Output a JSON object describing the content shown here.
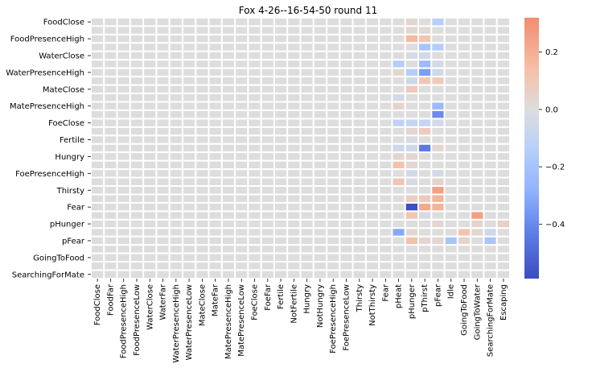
{
  "chart_data": {
    "type": "heatmap",
    "title": "Fox 4-26--16-54-50 round 11",
    "xlabel": "",
    "ylabel": "",
    "x_labels": [
      "FoodClose",
      "FoodFar",
      "FoodPresenceHigh",
      "FoodPresenceLow",
      "WaterClose",
      "WaterFar",
      "WaterPresenceHigh",
      "WaterPresenceLow",
      "MateClose",
      "MateFar",
      "MatePresenceHigh",
      "MatePresenceLow",
      "FoeClose",
      "FoeFar",
      "Fertile",
      "NotFertile",
      "Hungry",
      "NotHungry",
      "FoePresenceHigh",
      "FoePresenceLow",
      "Thirsty",
      "NotThirsty",
      "Fear",
      "pHeat",
      "pHunger",
      "pThirst",
      "pFear",
      "Idle",
      "GoingToFood",
      "GoingToWater",
      "SearchingForMate",
      "Escaping"
    ],
    "y_labels": [
      "FoodClose",
      "FoodPresenceHigh",
      "WaterClose",
      "WaterPresenceHigh",
      "MateClose",
      "MatePresenceHigh",
      "FoeClose",
      "Fertile",
      "Hungry",
      "FoePresenceHigh",
      "Thirsty",
      "Fear",
      "pHunger",
      "pFear",
      "GoingToFood",
      "SearchingForMate"
    ],
    "row_count": 31,
    "col_count": 32,
    "default_value": 0,
    "cells": [
      {
        "r": 0,
        "c": 24,
        "v": 0.04
      },
      {
        "r": 0,
        "c": 26,
        "v": -0.15
      },
      {
        "r": 1,
        "c": 24,
        "v": 0.03
      },
      {
        "r": 1,
        "c": 25,
        "v": 0.02
      },
      {
        "r": 2,
        "c": 24,
        "v": 0.18
      },
      {
        "r": 2,
        "c": 25,
        "v": 0.12
      },
      {
        "r": 3,
        "c": 25,
        "v": -0.2
      },
      {
        "r": 3,
        "c": 26,
        "v": -0.16
      },
      {
        "r": 4,
        "c": 24,
        "v": -0.03
      },
      {
        "r": 4,
        "c": 25,
        "v": -0.05
      },
      {
        "r": 5,
        "c": 23,
        "v": -0.16
      },
      {
        "r": 5,
        "c": 25,
        "v": -0.25
      },
      {
        "r": 5,
        "c": 26,
        "v": -0.04
      },
      {
        "r": 6,
        "c": 23,
        "v": 0.04
      },
      {
        "r": 6,
        "c": 24,
        "v": -0.16
      },
      {
        "r": 6,
        "c": 25,
        "v": -0.35
      },
      {
        "r": 6,
        "c": 26,
        "v": -0.06
      },
      {
        "r": 7,
        "c": 24,
        "v": -0.06
      },
      {
        "r": 7,
        "c": 25,
        "v": 0.12
      },
      {
        "r": 7,
        "c": 26,
        "v": 0.1
      },
      {
        "r": 8,
        "c": 24,
        "v": 0.1
      },
      {
        "r": 9,
        "c": 23,
        "v": -0.04
      },
      {
        "r": 10,
        "c": 23,
        "v": 0.05
      },
      {
        "r": 10,
        "c": 26,
        "v": -0.25
      },
      {
        "r": 11,
        "c": 26,
        "v": -0.4
      },
      {
        "r": 12,
        "c": 23,
        "v": -0.12
      },
      {
        "r": 12,
        "c": 24,
        "v": -0.1
      },
      {
        "r": 12,
        "c": 25,
        "v": -0.1
      },
      {
        "r": 12,
        "c": 26,
        "v": -0.04
      },
      {
        "r": 13,
        "c": 24,
        "v": 0.04
      },
      {
        "r": 13,
        "c": 25,
        "v": 0.1
      },
      {
        "r": 14,
        "c": 24,
        "v": -0.02
      },
      {
        "r": 15,
        "c": 23,
        "v": -0.06
      },
      {
        "r": 15,
        "c": 24,
        "v": -0.06
      },
      {
        "r": 15,
        "c": 25,
        "v": -0.45
      },
      {
        "r": 15,
        "c": 26,
        "v": 0.04
      },
      {
        "r": 16,
        "c": 23,
        "v": 0.04
      },
      {
        "r": 16,
        "c": 24,
        "v": 0.04
      },
      {
        "r": 17,
        "c": 23,
        "v": 0.15
      },
      {
        "r": 17,
        "c": 24,
        "v": 0.03
      },
      {
        "r": 18,
        "c": 24,
        "v": -0.05
      },
      {
        "r": 18,
        "c": 26,
        "v": -0.04
      },
      {
        "r": 19,
        "c": 23,
        "v": 0.13
      },
      {
        "r": 19,
        "c": 24,
        "v": -0.03
      },
      {
        "r": 19,
        "c": 26,
        "v": 0.05
      },
      {
        "r": 20,
        "c": 26,
        "v": 0.26
      },
      {
        "r": 21,
        "c": 24,
        "v": 0.08
      },
      {
        "r": 21,
        "c": 25,
        "v": 0.1
      },
      {
        "r": 21,
        "c": 26,
        "v": 0.2
      },
      {
        "r": 22,
        "c": 24,
        "v": -0.58
      },
      {
        "r": 22,
        "c": 25,
        "v": 0.23
      },
      {
        "r": 22,
        "c": 26,
        "v": 0.2
      },
      {
        "r": 23,
        "c": 24,
        "v": 0.12
      },
      {
        "r": 23,
        "c": 25,
        "v": -0.03
      },
      {
        "r": 23,
        "c": 29,
        "v": 0.26
      },
      {
        "r": 24,
        "c": 26,
        "v": 0.04
      },
      {
        "r": 24,
        "c": 29,
        "v": 0.05
      },
      {
        "r": 24,
        "c": 31,
        "v": 0.08
      },
      {
        "r": 25,
        "c": 23,
        "v": -0.32
      },
      {
        "r": 25,
        "c": 24,
        "v": 0.03
      },
      {
        "r": 25,
        "c": 28,
        "v": 0.14
      },
      {
        "r": 25,
        "c": 29,
        "v": 0.04
      },
      {
        "r": 25,
        "c": 30,
        "v": -0.06
      },
      {
        "r": 26,
        "c": 24,
        "v": 0.15
      },
      {
        "r": 26,
        "c": 25,
        "v": 0.04
      },
      {
        "r": 26,
        "c": 26,
        "v": 0.04
      },
      {
        "r": 26,
        "c": 27,
        "v": -0.2
      },
      {
        "r": 26,
        "c": 28,
        "v": 0.05
      },
      {
        "r": 26,
        "c": 30,
        "v": -0.2
      }
    ],
    "colorbar": {
      "colormap": "coolwarm",
      "vmin": -0.59,
      "vmax": 0.32,
      "ticks": [
        -0.4,
        -0.2,
        0.0,
        0.2
      ],
      "tick_labels": [
        "−0.4",
        "−0.2",
        "0.0",
        "0.2"
      ]
    },
    "colors": {
      "cool_end": "#3b4cc0",
      "neutral": "#dddddd",
      "warm_end": "#f18d6f"
    },
    "grid": "white lines between cells",
    "legend": "colorbar on the right"
  }
}
